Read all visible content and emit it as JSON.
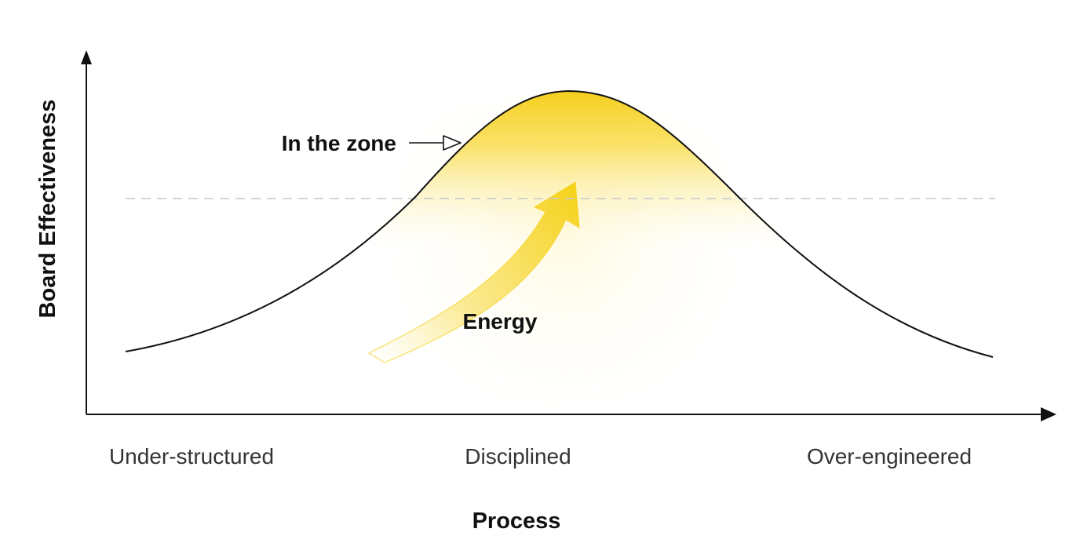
{
  "diagram": {
    "type": "bell-curve",
    "y_axis_label": "Board Effectiveness",
    "x_axis_label": "Process",
    "x_categories": [
      "Under-structured",
      "Disciplined",
      "Over-engineered"
    ],
    "annotations": {
      "zone_label": "In the zone",
      "energy_label": "Energy"
    },
    "colors": {
      "highlight": "#f7d21e",
      "line": "#111111",
      "threshold": "#c8c8c8"
    }
  }
}
